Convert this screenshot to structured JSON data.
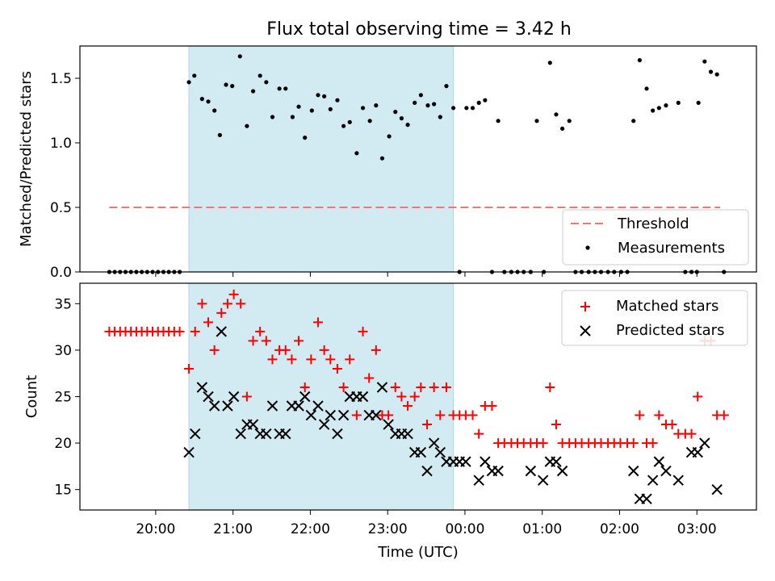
{
  "title": "Flux total observing time = 3.42 h",
  "colors": {
    "shade": "#add8e6",
    "threshold": "#ff7070",
    "matched": "#ff0000",
    "predicted": "#000000",
    "measurement": "#000000"
  },
  "chart_data": [
    {
      "type": "scatter",
      "panel": "top",
      "ylabel": "Matched/Predicted stars",
      "xlabel": "",
      "x_unit": "hours since 20:00 UTC",
      "xlim": [
        -0.98,
        7.77
      ],
      "ylim": [
        0,
        1.75
      ],
      "yticks": [
        0.0,
        0.5,
        1.0,
        1.5
      ],
      "ytick_labels": [
        "0.0",
        "0.5",
        "1.0",
        "1.5"
      ],
      "shaded_region": [
        0.43,
        3.85
      ],
      "legend": {
        "position": "lower-right",
        "entries": [
          "Threshold",
          "Measurements"
        ]
      },
      "threshold": {
        "name": "Threshold",
        "value": 0.5,
        "x_range": [
          -0.6,
          7.3
        ]
      },
      "series": [
        {
          "name": "Measurements",
          "points": [
            [
              -0.6,
              0
            ],
            [
              -0.53,
              0
            ],
            [
              -0.46,
              0
            ],
            [
              -0.39,
              0
            ],
            [
              -0.32,
              0
            ],
            [
              -0.25,
              0
            ],
            [
              -0.18,
              0
            ],
            [
              -0.11,
              0
            ],
            [
              -0.04,
              0
            ],
            [
              0.03,
              0
            ],
            [
              0.1,
              0
            ],
            [
              0.17,
              0
            ],
            [
              0.24,
              0
            ],
            [
              0.31,
              0
            ],
            [
              0.43,
              1.47
            ],
            [
              0.5,
              1.52
            ],
            [
              0.6,
              1.34
            ],
            [
              0.68,
              1.32
            ],
            [
              0.76,
              1.25
            ],
            [
              0.83,
              1.06
            ],
            [
              0.91,
              1.45
            ],
            [
              0.99,
              1.44
            ],
            [
              1.09,
              1.67
            ],
            [
              1.18,
              1.13
            ],
            [
              1.26,
              1.4
            ],
            [
              1.35,
              1.52
            ],
            [
              1.43,
              1.47
            ],
            [
              1.51,
              1.2
            ],
            [
              1.6,
              1.42
            ],
            [
              1.68,
              1.42
            ],
            [
              1.77,
              1.2
            ],
            [
              1.85,
              1.28
            ],
            [
              1.93,
              1.04
            ],
            [
              2.02,
              1.25
            ],
            [
              2.1,
              1.37
            ],
            [
              2.18,
              1.36
            ],
            [
              2.26,
              1.26
            ],
            [
              2.35,
              1.33
            ],
            [
              2.43,
              1.13
            ],
            [
              2.51,
              1.16
            ],
            [
              2.6,
              0.92
            ],
            [
              2.68,
              1.27
            ],
            [
              2.77,
              1.17
            ],
            [
              2.85,
              1.29
            ],
            [
              2.93,
              0.88
            ],
            [
              3.02,
              1.05
            ],
            [
              3.1,
              1.24
            ],
            [
              3.18,
              1.19
            ],
            [
              3.26,
              1.14
            ],
            [
              3.35,
              1.31
            ],
            [
              3.43,
              1.37
            ],
            [
              3.52,
              1.29
            ],
            [
              3.6,
              1.3
            ],
            [
              3.68,
              1.2
            ],
            [
              3.76,
              1.44
            ],
            [
              3.85,
              1.27
            ],
            [
              3.93,
              0
            ],
            [
              4.02,
              1.27
            ],
            [
              4.1,
              1.27
            ],
            [
              4.18,
              1.31
            ],
            [
              4.26,
              1.33
            ],
            [
              4.35,
              0
            ],
            [
              4.43,
              1.17
            ],
            [
              4.51,
              0
            ],
            [
              4.6,
              0
            ],
            [
              4.68,
              0
            ],
            [
              4.76,
              0
            ],
            [
              4.85,
              0
            ],
            [
              4.93,
              1.17
            ],
            [
              5.02,
              0
            ],
            [
              5.1,
              1.62
            ],
            [
              5.18,
              1.22
            ],
            [
              5.26,
              1.11
            ],
            [
              5.35,
              1.17
            ],
            [
              5.43,
              0
            ],
            [
              5.51,
              0
            ],
            [
              5.6,
              0
            ],
            [
              5.68,
              0
            ],
            [
              5.76,
              0
            ],
            [
              5.85,
              0
            ],
            [
              5.93,
              0
            ],
            [
              6.02,
              0
            ],
            [
              6.1,
              0
            ],
            [
              6.18,
              1.17
            ],
            [
              6.26,
              1.64
            ],
            [
              6.35,
              1.42
            ],
            [
              6.43,
              1.25
            ],
            [
              6.51,
              1.27
            ],
            [
              6.6,
              1.29
            ],
            [
              6.76,
              1.31
            ],
            [
              6.93,
              0
            ],
            [
              7.02,
              1.31
            ],
            [
              7.1,
              1.63
            ],
            [
              7.18,
              1.55
            ],
            [
              7.26,
              1.53
            ],
            [
              7.35,
              0
            ],
            [
              6.85,
              0
            ],
            [
              7.0,
              0
            ]
          ]
        }
      ]
    },
    {
      "type": "scatter",
      "panel": "bottom",
      "ylabel": "Count",
      "xlabel": "Time (UTC)",
      "x_unit": "hours since 20:00 UTC",
      "xlim": [
        -0.98,
        7.77
      ],
      "ylim": [
        12.8,
        37.2
      ],
      "yticks": [
        15,
        20,
        25,
        30,
        35
      ],
      "ytick_labels": [
        "15",
        "20",
        "25",
        "30",
        "35"
      ],
      "xticks": [
        0,
        1,
        2,
        3,
        4,
        5,
        6,
        7
      ],
      "xtick_labels": [
        "20:00",
        "21:00",
        "22:00",
        "23:00",
        "00:00",
        "01:00",
        "02:00",
        "03:00"
      ],
      "shaded_region": [
        0.43,
        3.85
      ],
      "legend": {
        "position": "top-right",
        "entries": [
          "Matched stars",
          "Predicted stars"
        ]
      },
      "series": [
        {
          "name": "Matched stars",
          "marker": "+",
          "points": [
            [
              -0.6,
              32
            ],
            [
              -0.53,
              32
            ],
            [
              -0.46,
              32
            ],
            [
              -0.39,
              32
            ],
            [
              -0.32,
              32
            ],
            [
              -0.25,
              32
            ],
            [
              -0.18,
              32
            ],
            [
              -0.11,
              32
            ],
            [
              -0.04,
              32
            ],
            [
              0.03,
              32
            ],
            [
              0.1,
              32
            ],
            [
              0.17,
              32
            ],
            [
              0.24,
              32
            ],
            [
              0.31,
              32
            ],
            [
              0.43,
              28
            ],
            [
              0.51,
              32
            ],
            [
              0.6,
              35
            ],
            [
              0.68,
              33
            ],
            [
              0.76,
              30
            ],
            [
              0.85,
              34
            ],
            [
              0.93,
              35
            ],
            [
              1.01,
              36
            ],
            [
              1.1,
              35
            ],
            [
              1.18,
              25
            ],
            [
              1.26,
              31
            ],
            [
              1.35,
              32
            ],
            [
              1.43,
              31
            ],
            [
              1.51,
              29
            ],
            [
              1.6,
              30
            ],
            [
              1.68,
              30
            ],
            [
              1.76,
              29
            ],
            [
              1.85,
              31
            ],
            [
              1.93,
              26
            ],
            [
              2.01,
              29
            ],
            [
              2.1,
              33
            ],
            [
              2.18,
              30
            ],
            [
              2.26,
              29
            ],
            [
              2.35,
              28
            ],
            [
              2.43,
              26
            ],
            [
              2.51,
              29
            ],
            [
              2.6,
              23
            ],
            [
              2.68,
              32
            ],
            [
              2.76,
              27
            ],
            [
              2.85,
              30
            ],
            [
              2.93,
              23
            ],
            [
              3.01,
              23
            ],
            [
              3.1,
              26
            ],
            [
              3.18,
              25
            ],
            [
              3.26,
              24
            ],
            [
              3.35,
              25
            ],
            [
              3.43,
              26
            ],
            [
              3.51,
              22
            ],
            [
              3.6,
              26
            ],
            [
              3.68,
              23
            ],
            [
              3.76,
              26
            ],
            [
              3.85,
              23
            ],
            [
              3.93,
              23
            ],
            [
              4.01,
              23
            ],
            [
              4.1,
              23
            ],
            [
              4.18,
              21
            ],
            [
              4.26,
              24
            ],
            [
              4.35,
              24
            ],
            [
              4.43,
              20
            ],
            [
              4.51,
              20
            ],
            [
              4.6,
              20
            ],
            [
              4.68,
              20
            ],
            [
              4.76,
              20
            ],
            [
              4.85,
              20
            ],
            [
              4.93,
              20
            ],
            [
              5.01,
              20
            ],
            [
              5.1,
              26
            ],
            [
              5.18,
              22
            ],
            [
              5.26,
              20
            ],
            [
              5.35,
              20
            ],
            [
              5.43,
              20
            ],
            [
              5.51,
              20
            ],
            [
              5.6,
              20
            ],
            [
              5.68,
              20
            ],
            [
              5.76,
              20
            ],
            [
              5.85,
              20
            ],
            [
              5.93,
              20
            ],
            [
              6.01,
              20
            ],
            [
              6.1,
              20
            ],
            [
              6.18,
              20
            ],
            [
              6.26,
              23
            ],
            [
              6.35,
              20
            ],
            [
              6.43,
              20
            ],
            [
              6.51,
              23
            ],
            [
              6.6,
              22
            ],
            [
              6.68,
              22
            ],
            [
              6.76,
              21
            ],
            [
              6.85,
              21
            ],
            [
              6.93,
              21
            ],
            [
              7.01,
              25
            ],
            [
              7.1,
              31
            ],
            [
              7.18,
              31
            ],
            [
              7.26,
              23
            ],
            [
              7.35,
              23
            ]
          ]
        },
        {
          "name": "Predicted stars",
          "marker": "x",
          "points": [
            [
              0.43,
              19
            ],
            [
              0.51,
              21
            ],
            [
              0.6,
              26
            ],
            [
              0.68,
              25
            ],
            [
              0.76,
              24
            ],
            [
              0.85,
              32
            ],
            [
              0.93,
              24
            ],
            [
              1.01,
              25
            ],
            [
              1.1,
              21
            ],
            [
              1.18,
              22
            ],
            [
              1.26,
              22
            ],
            [
              1.35,
              21
            ],
            [
              1.43,
              21
            ],
            [
              1.51,
              24
            ],
            [
              1.6,
              21
            ],
            [
              1.68,
              21
            ],
            [
              1.76,
              24
            ],
            [
              1.85,
              24
            ],
            [
              1.93,
              25
            ],
            [
              2.01,
              23
            ],
            [
              2.1,
              24
            ],
            [
              2.18,
              22
            ],
            [
              2.26,
              23
            ],
            [
              2.35,
              21
            ],
            [
              2.43,
              23
            ],
            [
              2.51,
              25
            ],
            [
              2.6,
              25
            ],
            [
              2.68,
              25
            ],
            [
              2.76,
              23
            ],
            [
              2.85,
              23
            ],
            [
              2.93,
              26
            ],
            [
              3.01,
              22
            ],
            [
              3.1,
              21
            ],
            [
              3.18,
              21
            ],
            [
              3.26,
              21
            ],
            [
              3.35,
              19
            ],
            [
              3.43,
              19
            ],
            [
              3.51,
              17
            ],
            [
              3.6,
              20
            ],
            [
              3.68,
              19
            ],
            [
              3.76,
              18
            ],
            [
              3.85,
              18
            ],
            [
              3.93,
              18
            ],
            [
              4.01,
              18
            ],
            [
              4.18,
              16
            ],
            [
              4.26,
              18
            ],
            [
              4.35,
              17
            ],
            [
              4.43,
              17
            ],
            [
              4.85,
              17
            ],
            [
              5.01,
              16
            ],
            [
              5.1,
              18
            ],
            [
              5.18,
              18
            ],
            [
              5.26,
              17
            ],
            [
              6.18,
              17
            ],
            [
              6.26,
              14
            ],
            [
              6.35,
              14
            ],
            [
              6.43,
              16
            ],
            [
              6.51,
              18
            ],
            [
              6.6,
              17
            ],
            [
              6.76,
              16
            ],
            [
              6.93,
              19
            ],
            [
              7.01,
              19
            ],
            [
              7.1,
              20
            ],
            [
              7.26,
              15
            ]
          ]
        }
      ]
    }
  ]
}
